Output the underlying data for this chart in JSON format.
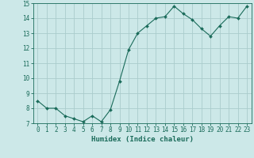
{
  "x": [
    0,
    1,
    2,
    3,
    4,
    5,
    6,
    7,
    8,
    9,
    10,
    11,
    12,
    13,
    14,
    15,
    16,
    17,
    18,
    19,
    20,
    21,
    22,
    23
  ],
  "y": [
    8.5,
    8.0,
    8.0,
    7.5,
    7.3,
    7.1,
    7.5,
    7.1,
    7.9,
    9.8,
    11.9,
    13.0,
    13.5,
    14.0,
    14.1,
    14.8,
    14.3,
    13.9,
    13.3,
    12.8,
    13.5,
    14.1,
    14.0,
    14.8
  ],
  "line_color": "#1a6b5a",
  "marker": "D",
  "marker_size": 2,
  "bg_color": "#cce8e8",
  "grid_color": "#aacccc",
  "xlabel": "Humidex (Indice chaleur)",
  "ylim": [
    7,
    15
  ],
  "xlim": [
    -0.5,
    23.5
  ],
  "yticks": [
    7,
    8,
    9,
    10,
    11,
    12,
    13,
    14,
    15
  ],
  "xticks": [
    0,
    1,
    2,
    3,
    4,
    5,
    6,
    7,
    8,
    9,
    10,
    11,
    12,
    13,
    14,
    15,
    16,
    17,
    18,
    19,
    20,
    21,
    22,
    23
  ],
  "tick_color": "#1a6b5a",
  "label_fontsize": 5.5,
  "axis_fontsize": 6.5
}
